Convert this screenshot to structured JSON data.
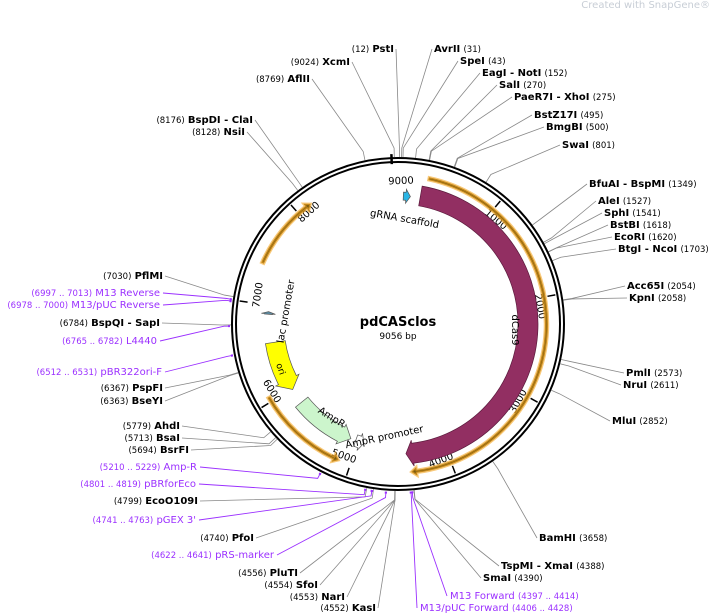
{
  "watermark": "Created with SnapGene®",
  "plasmid": {
    "name": "pdCASclos",
    "length_label": "9056 bp",
    "length": 9056
  },
  "ticks": [
    1000,
    2000,
    3000,
    4000,
    5000,
    6000,
    7000,
    8000,
    9000
  ],
  "colors": {
    "dCas9": "#922f62",
    "orf": "#f5a623",
    "gRNA": "#29b6e6",
    "ori": "#ffff00",
    "AmpR": "#ccf5cc",
    "primer": "#9b30ff",
    "enzyme_line": "#999999"
  },
  "features": [
    {
      "name": "dCas9",
      "start": 250,
      "end": 4440,
      "dir": "cw",
      "color": "#922f62",
      "label_visible": true
    },
    {
      "name": "gRNA scaffold",
      "start": 60,
      "end": 140,
      "dir": "cw",
      "color": "#29b6e6",
      "label_visible": true
    },
    {
      "name": "lac promoter",
      "start": 6900,
      "end": 6930,
      "dir": "cw",
      "color": "#5b8aa0",
      "label_visible": true
    },
    {
      "name": "ori",
      "start": 5990,
      "end": 6580,
      "dir": "ccw",
      "color": "#ffff00",
      "label_visible": true
    },
    {
      "name": "AmpR",
      "start": 5090,
      "end": 5810,
      "dir": "ccw",
      "color": "#ccf5cc",
      "label_visible": true
    },
    {
      "name": "AmpR promoter",
      "start": 4930,
      "end": 5030,
      "dir": "ccw",
      "color": "#ffffff",
      "label_visible": true
    }
  ],
  "orfs": [
    {
      "start": 300,
      "end": 4400,
      "dir": "cw"
    },
    {
      "start": 5120,
      "end": 6050,
      "dir": "ccw"
    },
    {
      "start": 7400,
      "end": 8150,
      "dir": "cw"
    }
  ],
  "enzymes": [
    {
      "name": "PstI",
      "pos": 12
    },
    {
      "name": "XcmI",
      "pos": 9024
    },
    {
      "name": "AflII",
      "pos": 8769
    },
    {
      "name": "BspDI  - ClaI",
      "pos": 8176
    },
    {
      "name": "NsiI",
      "pos": 8128
    },
    {
      "name": "AvrII",
      "pos": 31
    },
    {
      "name": "SpeI",
      "pos": 43
    },
    {
      "name": "EagI  - NotI",
      "pos": 152
    },
    {
      "name": "SalI",
      "pos": 270
    },
    {
      "name": "PaeR7I  - XhoI",
      "pos": 275
    },
    {
      "name": "BstZ17I",
      "pos": 495
    },
    {
      "name": "BmgBI",
      "pos": 500
    },
    {
      "name": "SwaI",
      "pos": 801
    },
    {
      "name": "BfuAI  - BspMI",
      "pos": 1349
    },
    {
      "name": "AleI",
      "pos": 1527
    },
    {
      "name": "SphI",
      "pos": 1541
    },
    {
      "name": "BstBI",
      "pos": 1618
    },
    {
      "name": "EcoRI",
      "pos": 1620
    },
    {
      "name": "BtgI  - NcoI",
      "pos": 1703
    },
    {
      "name": "Acc65I",
      "pos": 2054
    },
    {
      "name": "KpnI",
      "pos": 2058
    },
    {
      "name": "PmlI",
      "pos": 2573
    },
    {
      "name": "NruI",
      "pos": 2611
    },
    {
      "name": "MluI",
      "pos": 2852
    },
    {
      "name": "BamHI",
      "pos": 3658
    },
    {
      "name": "TspMI  - XmaI",
      "pos": 4388
    },
    {
      "name": "SmaI",
      "pos": 4390
    },
    {
      "name": "PflMI",
      "pos": 7030
    },
    {
      "name": "BspQI  - SapI",
      "pos": 6784
    },
    {
      "name": "PspFI",
      "pos": 6367
    },
    {
      "name": "BseYI",
      "pos": 6363
    },
    {
      "name": "AhdI",
      "pos": 5779
    },
    {
      "name": "BsaI",
      "pos": 5713
    },
    {
      "name": "BsrFI",
      "pos": 5694
    },
    {
      "name": "EcoO109I",
      "pos": 4799
    },
    {
      "name": "PfoI",
      "pos": 4740
    },
    {
      "name": "PluTI",
      "pos": 4556
    },
    {
      "name": "SfoI",
      "pos": 4554
    },
    {
      "name": "NarI",
      "pos": 4553
    },
    {
      "name": "KasI",
      "pos": 4552
    }
  ],
  "primers": [
    {
      "name": "M13 Reverse",
      "start": 6997,
      "end": 7013
    },
    {
      "name": "M13/pUC Reverse",
      "start": 6978,
      "end": 7000
    },
    {
      "name": "L4440",
      "start": 6765,
      "end": 6782
    },
    {
      "name": "pBR322ori-F",
      "start": 6512,
      "end": 6531
    },
    {
      "name": "Amp-R",
      "start": 5210,
      "end": 5229
    },
    {
      "name": "pBRforEco",
      "start": 4801,
      "end": 4819
    },
    {
      "name": "pGEX 3'",
      "start": 4741,
      "end": 4763
    },
    {
      "name": "pRS-marker",
      "start": 4622,
      "end": 4641
    },
    {
      "name": "M13 Forward",
      "start": 4397,
      "end": 4414
    },
    {
      "name": "M13/pUC Forward",
      "start": 4406,
      "end": 4428
    }
  ]
}
